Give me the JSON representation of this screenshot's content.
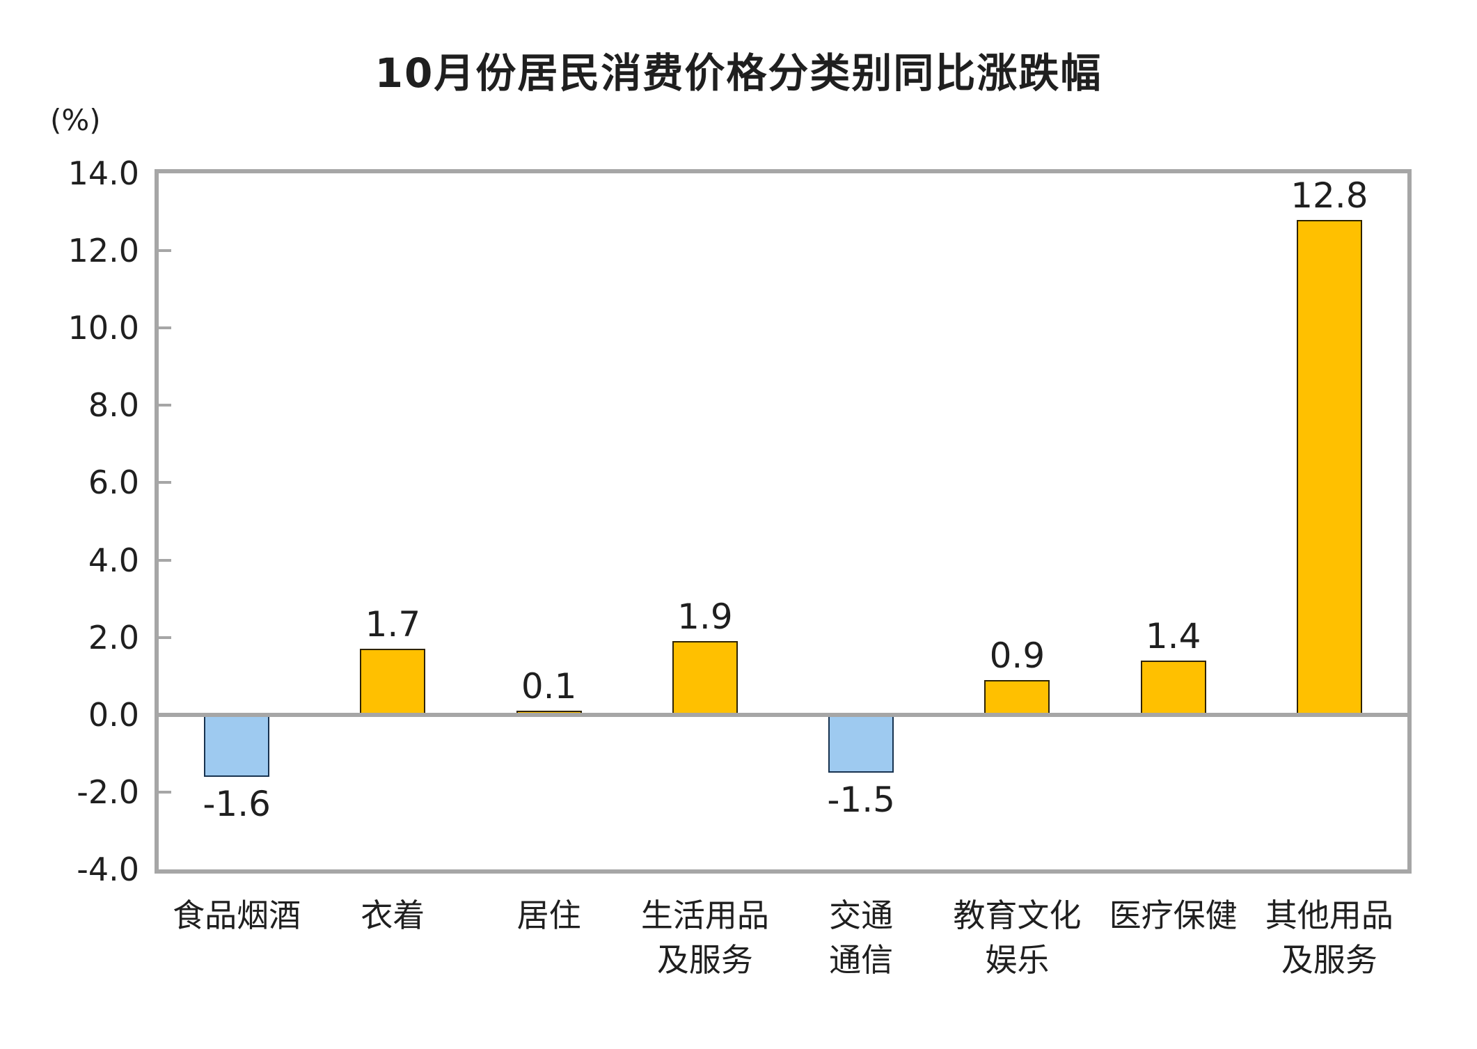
{
  "title": "10月份居民消费价格分类别同比涨跌幅",
  "y_axis_unit": "(%)",
  "chart_data": {
    "type": "bar",
    "title": "10月份居民消费价格分类别同比涨跌幅",
    "categories": [
      "食品烟酒",
      "衣着",
      "居住",
      "生活用品\n及服务",
      "交通\n通信",
      "教育文化\n娱乐",
      "医疗保健",
      "其他用品\n及服务"
    ],
    "values": [
      -1.6,
      1.7,
      0.1,
      1.9,
      -1.5,
      0.9,
      1.4,
      12.8
    ],
    "data_labels": [
      "-1.6",
      "1.7",
      "0.1",
      "1.9",
      "-1.5",
      "0.9",
      "1.4",
      "12.8"
    ],
    "xlabel": "",
    "ylabel": "(%)",
    "ylim": [
      -4.0,
      14.0
    ],
    "ytick_step": 2.0,
    "ytick_labels": [
      "14.0",
      "12.0",
      "10.0",
      "8.0",
      "6.0",
      "4.0",
      "2.0",
      "0.0",
      "-2.0",
      "-4.0"
    ],
    "grid": false,
    "legend": "none",
    "colors": {
      "positive_fill": "#FFC000",
      "positive_border": "#2e2300",
      "negative_fill": "#9ECAF0",
      "negative_border": "#17324f",
      "axis_line": "#A6A6A6",
      "text": "#1F1F1F",
      "background": "#FFFFFF"
    }
  }
}
